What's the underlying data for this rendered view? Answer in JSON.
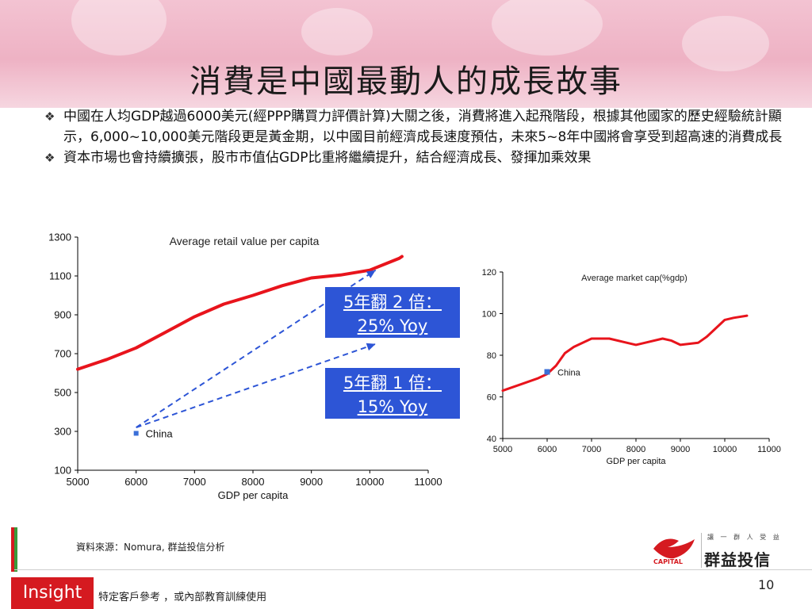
{
  "title": "消費是中國最動人的成長故事",
  "bullets": [
    {
      "icon": "diamond-bullet-icon",
      "text": "中國在人均GDP越過6000美元(經PPP購買力評價計算)大關之後，消費將進入起飛階段，根據其他國家的歷史經驗統計顯示，6,000~10,000美元階段更是黃金期，以中國目前經濟成長速度預估，未來5~8年中國將會享受到超高速的消費成長"
    },
    {
      "icon": "diamond-bullet-icon",
      "text": "資本市場也會持續擴張，股市市值佔GDP比重將繼續提升，結合經濟成長、發揮加乘效果"
    }
  ],
  "chart_data": [
    {
      "type": "line",
      "title": "Average retail value per capita",
      "xlabel": "GDP per capita",
      "ylabel": "",
      "xlim": [
        5000,
        11000
      ],
      "ylim": [
        100,
        1300
      ],
      "x_ticks": [
        "5000",
        "6000",
        "7000",
        "8000",
        "9000",
        "10000",
        "11000"
      ],
      "y_ticks": [
        "100",
        "300",
        "500",
        "700",
        "900",
        "1100",
        "1300"
      ],
      "grid": false,
      "series": [
        {
          "color": "#e8141c",
          "x": [
            5000,
            5500,
            6000,
            6500,
            7000,
            7500,
            8000,
            8500,
            9000,
            9500,
            10000,
            10500,
            10550
          ],
          "y": [
            620,
            670,
            730,
            810,
            890,
            955,
            1000,
            1050,
            1090,
            1105,
            1130,
            1190,
            1200
          ]
        }
      ],
      "markers": [
        {
          "label": "China",
          "x": 6000,
          "y": 290,
          "color": "#3a6fd8"
        }
      ],
      "arrows": [
        {
          "from": [
            6000,
            320
          ],
          "to": [
            10100,
            1130
          ],
          "color": "#2d55d6",
          "style": "dashed"
        },
        {
          "from": [
            6000,
            320
          ],
          "to": [
            10100,
            750
          ],
          "color": "#2d55d6",
          "style": "dashed"
        }
      ],
      "annotations": [
        {
          "line1": "5年翻 2 倍：",
          "line2": "25% Yoy"
        },
        {
          "line1": "5年翻 1 倍：",
          "line2": "15% Yoy"
        }
      ]
    },
    {
      "type": "line",
      "title": "Average market cap(%gdp)",
      "xlabel": "GDP per capita",
      "ylabel": "",
      "xlim": [
        5000,
        11000
      ],
      "ylim": [
        40,
        120
      ],
      "x_ticks": [
        "5000",
        "6000",
        "7000",
        "8000",
        "9000",
        "10000",
        "11000"
      ],
      "y_ticks": [
        "40",
        "60",
        "80",
        "100",
        "120"
      ],
      "grid": false,
      "series": [
        {
          "color": "#e8141c",
          "x": [
            5000,
            5400,
            5800,
            6000,
            6200,
            6400,
            6600,
            7000,
            7400,
            7800,
            8000,
            8200,
            8600,
            8800,
            9000,
            9400,
            9600,
            9800,
            10000,
            10200,
            10500
          ],
          "y": [
            63,
            66,
            69,
            71,
            75,
            81,
            84,
            88,
            88,
            86,
            85,
            86,
            88,
            87,
            85,
            86,
            89,
            93,
            97,
            98,
            99
          ]
        }
      ],
      "markers": [
        {
          "label": "China",
          "x": 6000,
          "y": 72,
          "color": "#3a6fd8"
        }
      ]
    }
  ],
  "source": "資料來源：Nomura, 群益投信分析",
  "footer": {
    "insight": "Insight",
    "disclaimer": "特定客戶參考 ，或內部教育訓練使用",
    "page_number": "10"
  },
  "logo": {
    "slogan": "讓 一 群 人 受 益",
    "name": "群益投信",
    "tag": "CAPITAL"
  }
}
